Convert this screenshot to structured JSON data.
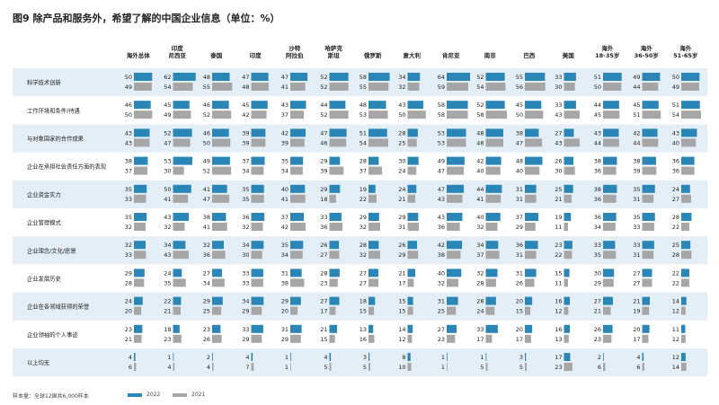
{
  "title": "图9 除产品和服务外，希望了解的中国企业信息（单位：%）",
  "footnote": "样本量：全球12国共6,000样本",
  "colors": {
    "s2022": "#2a86b7",
    "s2021": "#a6a6a6",
    "band": "#e4eef6",
    "text": "#222222"
  },
  "chart_data": {
    "type": "bar",
    "columns": [
      "海外总体",
      "印度\n尼西亚",
      "泰国",
      "印度",
      "沙特\n阿拉伯",
      "哈萨克\n斯坦",
      "俄罗斯",
      "意大利",
      "肯尼亚",
      "南非",
      "巴西",
      "美国",
      "海外\n18-35岁",
      "海外\n36-50岁",
      "海外\n51-65岁"
    ],
    "categories": [
      "科学技术创新",
      "工作环境和条件/待遇",
      "与对象国家的合作成果",
      "企业在承担社会责任方面的表现",
      "企业资金实力",
      "企业管理模式",
      "企业理念/文化/愿景",
      "企业发展历史",
      "企业在各领域获得的荣誉",
      "企业领袖的个人事迹",
      "以上均无"
    ],
    "series": [
      {
        "name": "2022",
        "values": [
          [
            50,
            62,
            48,
            47,
            47,
            52,
            58,
            34,
            64,
            52,
            55,
            33,
            51,
            49,
            50
          ],
          [
            46,
            45,
            46,
            45,
            43,
            44,
            48,
            43,
            58,
            52,
            45,
            33,
            44,
            45,
            51
          ],
          [
            43,
            52,
            46,
            39,
            42,
            47,
            51,
            28,
            53,
            48,
            38,
            27,
            43,
            42,
            43
          ],
          [
            38,
            53,
            49,
            37,
            35,
            29,
            28,
            30,
            49,
            42,
            48,
            26,
            38,
            38,
            36
          ],
          [
            35,
            50,
            41,
            35,
            40,
            29,
            19,
            24,
            47,
            44,
            31,
            25,
            38,
            35,
            24
          ],
          [
            35,
            43,
            38,
            36,
            37,
            33,
            29,
            29,
            43,
            40,
            37,
            19,
            36,
            35,
            28
          ],
          [
            32,
            34,
            32,
            34,
            35,
            26,
            28,
            26,
            42,
            34,
            36,
            23,
            33,
            33,
            25
          ],
          [
            29,
            24,
            27,
            33,
            31,
            28,
            27,
            21,
            40,
            32,
            31,
            15,
            30,
            27,
            22
          ],
          [
            24,
            22,
            29,
            34,
            29,
            27,
            18,
            15,
            31,
            28,
            20,
            16,
            27,
            21,
            14
          ],
          [
            23,
            18,
            23,
            33,
            31,
            21,
            13,
            14,
            27,
            33,
            20,
            16,
            26,
            20,
            11
          ],
          [
            4,
            1,
            2,
            4,
            1,
            4,
            3,
            8,
            1,
            1,
            3,
            17,
            2,
            4,
            12
          ]
        ]
      },
      {
        "name": "2021",
        "values": [
          [
            49,
            54,
            55,
            48,
            41,
            52,
            55,
            32,
            59,
            54,
            56,
            30,
            50,
            44,
            49
          ],
          [
            50,
            49,
            52,
            42,
            37,
            52,
            53,
            50,
            58,
            58,
            50,
            43,
            45,
            51,
            54
          ],
          [
            43,
            47,
            50,
            39,
            39,
            46,
            54,
            25,
            53,
            48,
            47,
            43,
            44,
            44,
            40
          ],
          [
            37,
            30,
            52,
            34,
            34,
            39,
            37,
            24,
            47,
            40,
            40,
            30,
            36,
            39,
            36
          ],
          [
            33,
            41,
            47,
            35,
            41,
            18,
            22,
            21,
            43,
            41,
            31,
            21,
            36,
            31,
            27
          ],
          [
            32,
            32,
            41,
            32,
            42,
            36,
            32,
            31,
            36,
            32,
            29,
            11,
            34,
            33,
            22
          ],
          [
            33,
            43,
            36,
            30,
            34,
            27,
            32,
            29,
            38,
            37,
            31,
            22,
            35,
            31,
            28
          ],
          [
            28,
            35,
            34,
            33,
            38,
            23,
            27,
            17,
            32,
            28,
            26,
            11,
            29,
            27,
            22
          ],
          [
            20,
            21,
            25,
            29,
            20,
            17,
            15,
            15,
            25,
            24,
            15,
            12,
            21,
            19,
            12
          ],
          [
            21,
            23,
            26,
            29,
            29,
            15,
            16,
            12,
            23,
            17,
            17,
            13,
            23,
            17,
            12
          ],
          [
            6,
            4,
            4,
            7,
            1,
            5,
            5,
            10,
            1,
            5,
            5,
            23,
            6,
            6,
            14
          ]
        ]
      }
    ],
    "legend": [
      "2022",
      "2021"
    ],
    "legend_position": "bottom",
    "grid": false
  }
}
